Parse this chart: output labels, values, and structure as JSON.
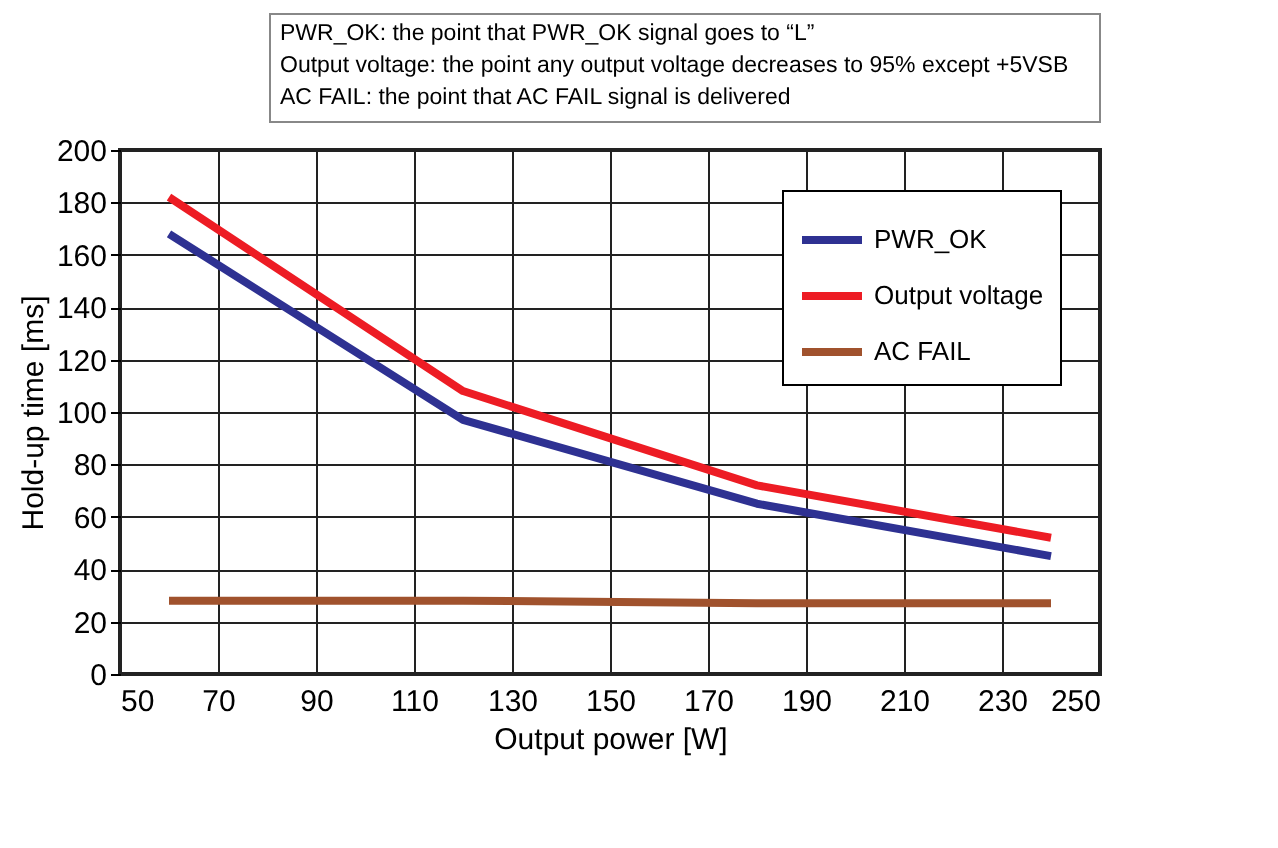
{
  "chart_data": {
    "type": "line",
    "xlabel": "Output power [W]",
    "ylabel": "Hold-up time [ms]",
    "annotations": [
      "PWR_OK: the point that PWR_OK signal goes to “L”",
      "Output voltage: the point any output voltage decreases to 95% except +5VSB",
      "AC FAIL: the point that AC FAIL signal is delivered"
    ],
    "x": [
      60,
      120,
      180,
      240
    ],
    "series": [
      {
        "name": "PWR_OK",
        "color": "#2e3192",
        "values": [
          168,
          97,
          65,
          45
        ]
      },
      {
        "name": "Output voltage",
        "color": "#ed1c24",
        "values": [
          182,
          108,
          72,
          52
        ]
      },
      {
        "name": "AC FAIL",
        "color": "#a0522d",
        "values": [
          28,
          28,
          27,
          27
        ]
      }
    ],
    "xlim": [
      50,
      250
    ],
    "xticks": [
      50,
      70,
      90,
      110,
      130,
      150,
      170,
      190,
      210,
      230,
      250
    ],
    "ylim": [
      0,
      200
    ],
    "yticks": [
      0,
      20,
      40,
      60,
      80,
      100,
      120,
      140,
      160,
      180,
      200
    ],
    "grid": true,
    "legend": "top right",
    "line_style": "solid",
    "marker": "none"
  }
}
